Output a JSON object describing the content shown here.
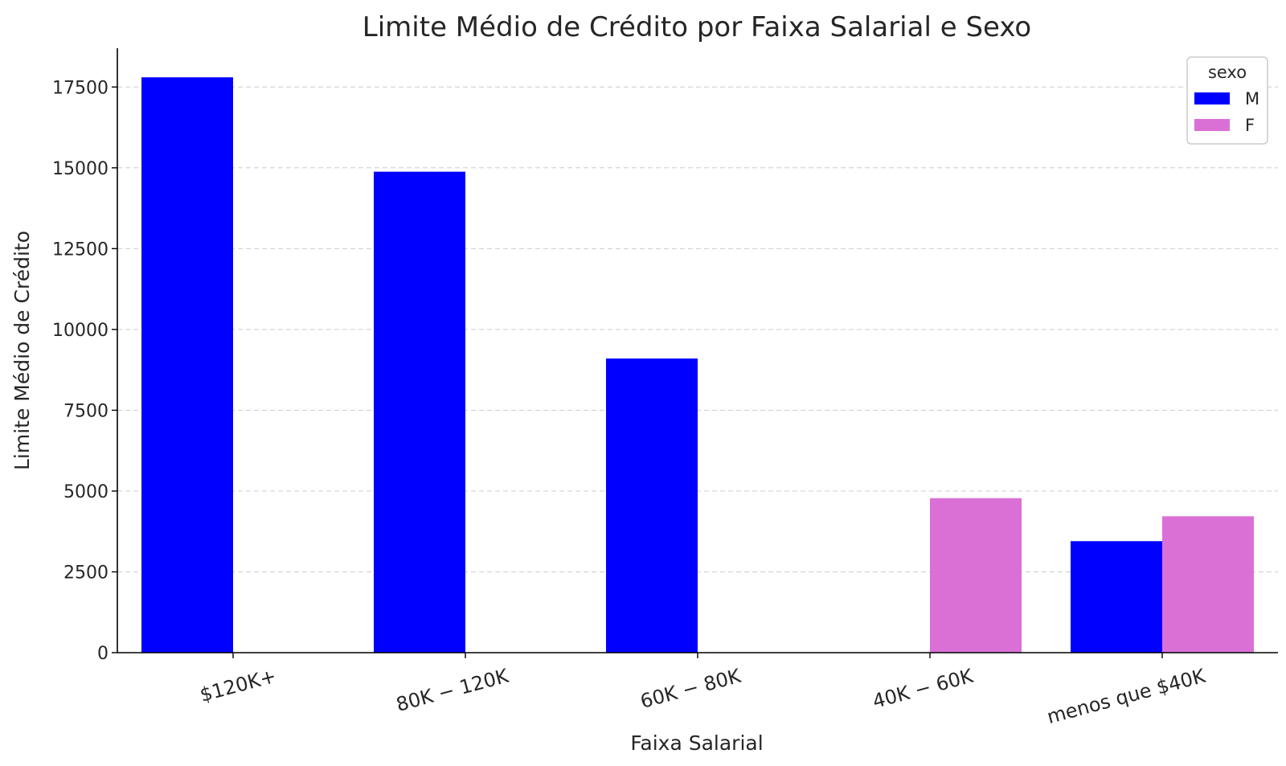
{
  "chart_data": {
    "type": "bar",
    "title": "Limite Médio de Crédito por Faixa Salarial e Sexo",
    "xlabel": "Faixa Salarial",
    "ylabel": "Limite Médio de Crédito",
    "categories": [
      "$120K+",
      "80K − 120K",
      "60K − 80K",
      "40K − 60K",
      "menos que $40K"
    ],
    "series": [
      {
        "name": "M",
        "color": "#0000ff",
        "values": [
          17800,
          14880,
          9100,
          null,
          3450
        ]
      },
      {
        "name": "F",
        "color": "#da70d6",
        "values": [
          null,
          null,
          null,
          4780,
          4220
        ]
      }
    ],
    "ylim": [
      0,
      18700
    ],
    "yticks": [
      0,
      2500,
      5000,
      7500,
      10000,
      12500,
      15000,
      17500
    ],
    "grid": "horizontal-dashed",
    "legend": {
      "title": "sexo",
      "placement": "top-right"
    }
  }
}
